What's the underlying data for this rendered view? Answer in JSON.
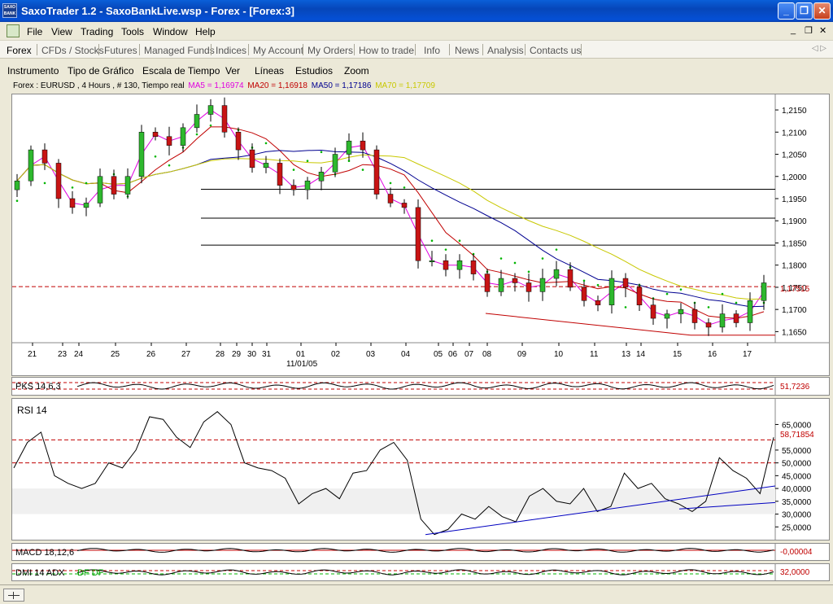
{
  "window": {
    "title": "SaxoTrader 1.2 - SaxoBankLive.wsp - Forex - [Forex:3]",
    "icon_text": "SAXO BANK",
    "icon_name": "saxo-app-icon"
  },
  "menu": [
    "File",
    "View",
    "Trading",
    "Tools",
    "Window",
    "Help"
  ],
  "tabs": [
    "Forex",
    "CFDs / Stocks",
    "Futures",
    "Managed Funds",
    "Indices",
    "My Account",
    "My Orders",
    "How to trade",
    "Info",
    "News",
    "Analysis",
    "Contacts us"
  ],
  "active_tab": "Forex",
  "chart_toolbar": [
    "Instrumento",
    "Tipo de Gráfico",
    "Escala de Tiempo",
    "Ver",
    "Líneas",
    "Estudios",
    "Zoom"
  ],
  "legend": {
    "instrument": "Forex : EURUSD , 4 Hours , # 130, Tiempo real",
    "ma5": "MA5 = 1,16974",
    "ma20": "MA20 = 1,16918",
    "ma50": "MA50 = 1,17186",
    "ma70": "MA70 = 1,17709"
  },
  "colors": {
    "ma5": "#e000e0",
    "ma20": "#c00000",
    "ma50": "#000090",
    "ma70": "#c8c800",
    "psar": "#00b400",
    "bull": "#2eb82e",
    "bear": "#c81414",
    "rsi_trend": "#0000c0"
  },
  "chart_data": [
    {
      "type": "candlestick",
      "instrument": "EURUSD",
      "interval": "4 Hours",
      "y_ticks": [
        "1,2150",
        "1,2100",
        "1,2050",
        "1,2000",
        "1,1950",
        "1,1900",
        "1,1850",
        "1,1800",
        "1,1750",
        "1,1700",
        "1,1650"
      ],
      "ylim": [
        1.1625,
        1.2185
      ],
      "x_ticks": [
        "21",
        "23",
        "24",
        "25",
        "26",
        "27",
        "28",
        "29",
        "30",
        "31",
        "01",
        "02",
        "03",
        "04",
        "05",
        "06",
        "07",
        "08",
        "09",
        "10",
        "11",
        "13",
        "14",
        "15",
        "16",
        "17"
      ],
      "x_date_label": "11/01/05",
      "current_price_label": "1,17515",
      "current_price": 1.17515,
      "horizontal_lines": [
        1.1971,
        1.1906,
        1.1845
      ],
      "close_path": [
        1.199,
        1.206,
        1.203,
        1.195,
        1.193,
        1.194,
        1.2,
        1.196,
        1.2,
        1.21,
        1.209,
        1.207,
        1.211,
        1.214,
        1.216,
        1.21,
        1.206,
        1.202,
        1.203,
        1.198,
        1.197,
        1.199,
        1.201,
        1.205,
        1.208,
        1.206,
        1.196,
        1.194,
        1.193,
        1.181,
        1.181,
        1.179,
        1.181,
        1.178,
        1.174,
        1.177,
        1.176,
        1.174,
        1.177,
        1.179,
        1.175,
        1.172,
        1.171,
        1.177,
        1.175,
        1.171,
        1.168,
        1.169,
        1.17,
        1.167,
        1.166,
        1.169,
        1.167,
        1.172,
        1.176
      ]
    },
    {
      "type": "line",
      "name": "RSI 14",
      "y_ticks": [
        "65,0000",
        "55,0000",
        "50,0000",
        "45,0000",
        "40,0000",
        "35,0000",
        "30,0000",
        "25,0000"
      ],
      "current_label": "58,71854",
      "ref_lines": [
        59,
        50
      ],
      "values": [
        48,
        58,
        62,
        45,
        42,
        40,
        42,
        50,
        48,
        55,
        68,
        67,
        60,
        56,
        66,
        70,
        65,
        50,
        48,
        47,
        44,
        34,
        38,
        40,
        36,
        46,
        47,
        55,
        58,
        51,
        28,
        22,
        24,
        30,
        28,
        33,
        29,
        27,
        37,
        40,
        35,
        34,
        40,
        31,
        33,
        46,
        40,
        42,
        36,
        34,
        31,
        35,
        52,
        47,
        44,
        38,
        60
      ]
    }
  ],
  "indicators": {
    "pks": {
      "name": "PKS 14,6,3",
      "value": "51,7236"
    },
    "rsi": {
      "name": "RSI 14",
      "value": "58,71854"
    },
    "macd": {
      "name": "MACD 18,12,6",
      "value": "-0,00004"
    },
    "dmi": {
      "name": "DMI 14 ADX",
      "suffix": "DF DF",
      "value": "32,0000"
    }
  }
}
